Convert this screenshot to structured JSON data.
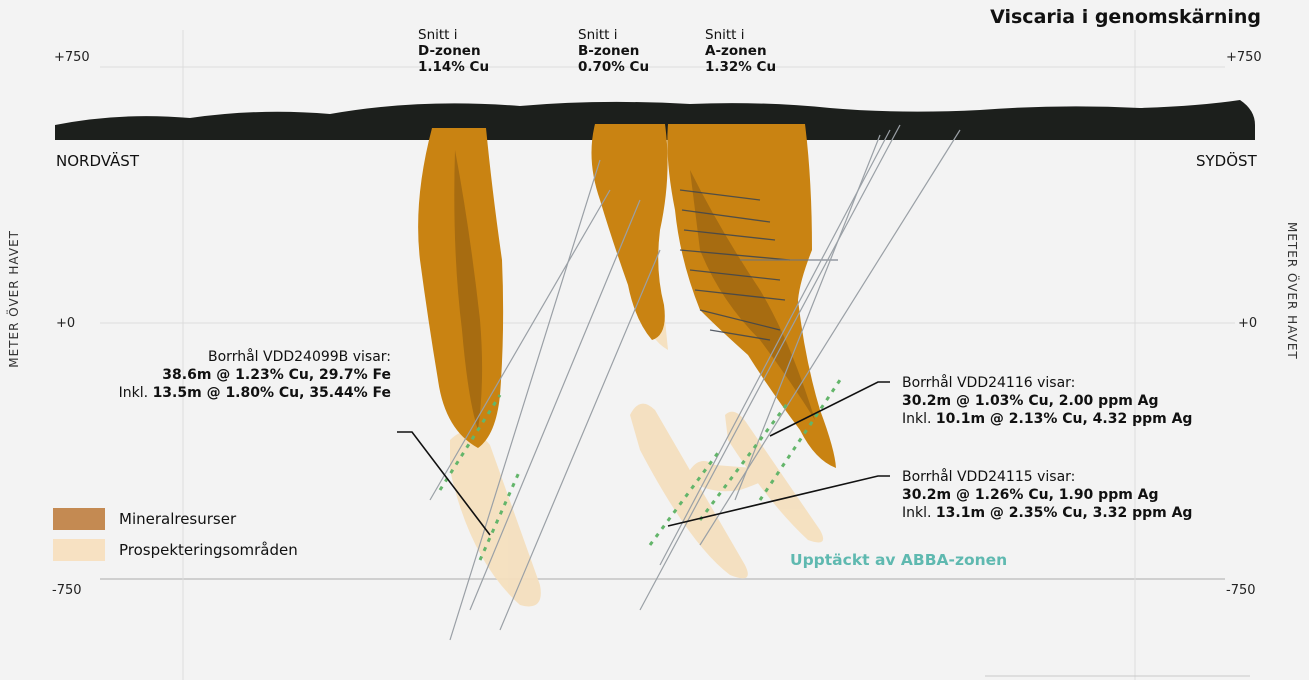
{
  "title": "Viscaria i genomskärning",
  "elevation": {
    "top": "+750",
    "mid": "+0",
    "bottom": "-750"
  },
  "axis_label": "METER ÖVER HAVET",
  "directions": {
    "left": "NORDVÄST",
    "right": "SYDÖST"
  },
  "sections": [
    {
      "line1": "Snitt i",
      "zone": "D-zonen",
      "grade": "1.14% Cu"
    },
    {
      "line1": "Snitt i",
      "zone": "B-zonen",
      "grade": "0.70% Cu"
    },
    {
      "line1": "Snitt i",
      "zone": "A-zonen",
      "grade": "1.32% Cu"
    }
  ],
  "callouts": [
    {
      "heading": "Borrhål VDD24099B visar:",
      "main": "38.6m @ 1.23% Cu, 29.7% Fe",
      "incl_prefix": "Inkl.",
      "incl": "13.5m @ 1.80% Cu, 35.44% Fe"
    },
    {
      "heading": "Borrhål VDD24116 visar:",
      "main": "30.2m @ 1.03% Cu, 2.00 ppm Ag",
      "incl_prefix": "Inkl.",
      "incl": "10.1m @ 2.13% Cu, 4.32 ppm Ag"
    },
    {
      "heading": "Borrhål VDD24115 visar:",
      "main": "30.2m @ 1.26% Cu, 1.90 ppm Ag",
      "incl_prefix": "Inkl.",
      "incl": "13.1m @ 2.35% Cu, 3.32 ppm Ag"
    }
  ],
  "legend": [
    {
      "label": "Mineralresurser",
      "color": "#c48a52"
    },
    {
      "label": "Prospekteringsområden",
      "color": "#f7e1c2"
    }
  ],
  "highlight": "Upptäckt av ABBA-zonen",
  "colors": {
    "ore_body": "#c98312",
    "prospect": "#f5dfbd",
    "terrain": "#1c1f1c",
    "highlight": "#5fb9b0",
    "drillhole": "#9aa0a6"
  }
}
